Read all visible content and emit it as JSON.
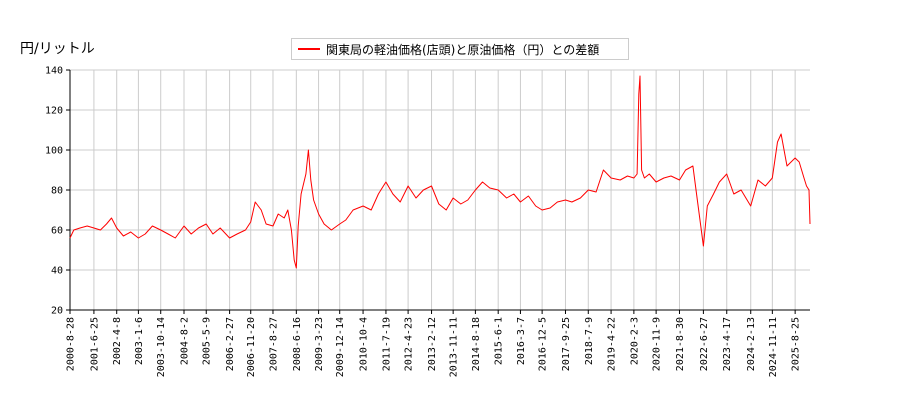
{
  "chart_data": {
    "type": "line",
    "ylabel": "円/リットル",
    "legend": "関東局の軽油価格(店頭)と原油価格（円）との差額",
    "ylim": [
      20,
      140
    ],
    "yticks": [
      20,
      40,
      60,
      80,
      100,
      120,
      140
    ],
    "xlim": [
      "2000-08-28",
      "2026-02-28"
    ],
    "xticks": [
      "2000-8-28",
      "2001-6-25",
      "2002-4-8",
      "2003-1-6",
      "2003-10-14",
      "2004-8-2",
      "2005-5-9",
      "2006-2-27",
      "2006-11-20",
      "2007-8-27",
      "2008-6-16",
      "2009-3-23",
      "2009-12-14",
      "2010-10-4",
      "2011-7-19",
      "2012-4-23",
      "2013-2-12",
      "2013-11-11",
      "2014-8-18",
      "2015-6-1",
      "2016-3-7",
      "2016-12-5",
      "2017-9-25",
      "2018-7-9",
      "2019-4-22",
      "2020-2-3",
      "2020-11-9",
      "2021-8-30",
      "2022-6-27",
      "2023-4-17",
      "2024-2-13",
      "2024-11-11",
      "2025-8-25"
    ],
    "grid": true,
    "color": "#ff0000",
    "series": [
      {
        "x": [
          "2000-08-28",
          "2000-10-15",
          "2001-01-01",
          "2001-04-01",
          "2001-06-25",
          "2001-09-15",
          "2001-12-01",
          "2002-02-01",
          "2002-04-08",
          "2002-07-01",
          "2002-10-01",
          "2003-01-06",
          "2003-04-01",
          "2003-07-01",
          "2003-10-14",
          "2004-01-15",
          "2004-04-15",
          "2004-08-02",
          "2004-11-01",
          "2005-02-01",
          "2005-05-09",
          "2005-08-01",
          "2005-11-01",
          "2006-02-27",
          "2006-06-01",
          "2006-09-15",
          "2006-11-20",
          "2007-01-15",
          "2007-04-01",
          "2007-06-01",
          "2007-08-27",
          "2007-11-01",
          "2008-01-15",
          "2008-03-01",
          "2008-04-15",
          "2008-05-20",
          "2008-06-16",
          "2008-07-10",
          "2008-08-15",
          "2008-10-15",
          "2008-11-15",
          "2008-12-15",
          "2009-01-20",
          "2009-03-23",
          "2009-06-01",
          "2009-09-01",
          "2009-12-14",
          "2010-03-01",
          "2010-06-01",
          "2010-10-04",
          "2011-01-15",
          "2011-04-15",
          "2011-07-19",
          "2011-10-15",
          "2012-01-15",
          "2012-04-23",
          "2012-08-01",
          "2012-11-01",
          "2013-02-12",
          "2013-05-15",
          "2013-08-15",
          "2013-11-11",
          "2014-02-15",
          "2014-05-15",
          "2014-08-18",
          "2014-11-15",
          "2015-02-15",
          "2015-06-01",
          "2015-09-15",
          "2015-12-15",
          "2016-03-07",
          "2016-06-15",
          "2016-09-15",
          "2016-12-05",
          "2017-03-15",
          "2017-06-15",
          "2017-09-25",
          "2017-12-15",
          "2018-04-01",
          "2018-07-09",
          "2018-10-15",
          "2019-01-15",
          "2019-04-22",
          "2019-08-15",
          "2019-11-15",
          "2020-02-03",
          "2020-03-15",
          "2020-04-05",
          "2020-04-20",
          "2020-05-10",
          "2020-06-15",
          "2020-08-15",
          "2020-11-09",
          "2021-02-15",
          "2021-05-15",
          "2021-08-30",
          "2021-11-15",
          "2022-02-15",
          "2022-04-15",
          "2022-06-27",
          "2022-08-15",
          "2022-11-01",
          "2023-01-15",
          "2023-04-17",
          "2023-07-15",
          "2023-10-15",
          "2024-02-13",
          "2024-05-15",
          "2024-08-15",
          "2024-11-11",
          "2025-01-15",
          "2025-03-01",
          "2025-05-15",
          "2025-08-25",
          "2025-10-15",
          "2025-12-15",
          "2026-01-15",
          "2026-02-15",
          "2026-02-28"
        ],
        "y": [
          56,
          60,
          61,
          62,
          61,
          60,
          63,
          66,
          61,
          57,
          59,
          56,
          58,
          62,
          60,
          58,
          56,
          62,
          58,
          61,
          63,
          58,
          61,
          56,
          58,
          60,
          64,
          74,
          70,
          63,
          62,
          68,
          66,
          70,
          60,
          45,
          41,
          62,
          78,
          88,
          100,
          85,
          75,
          68,
          63,
          60,
          63,
          65,
          70,
          72,
          70,
          78,
          84,
          78,
          74,
          82,
          76,
          80,
          82,
          73,
          70,
          76,
          73,
          75,
          80,
          84,
          81,
          80,
          76,
          78,
          74,
          77,
          72,
          70,
          71,
          74,
          75,
          74,
          76,
          80,
          79,
          90,
          86,
          85,
          87,
          86,
          88,
          128,
          137,
          90,
          86,
          88,
          84,
          86,
          87,
          85,
          90,
          92,
          74,
          52,
          72,
          78,
          84,
          88,
          78,
          80,
          72,
          85,
          82,
          86,
          104,
          108,
          92,
          96,
          94,
          86,
          82,
          80,
          63
        ]
      }
    ]
  }
}
